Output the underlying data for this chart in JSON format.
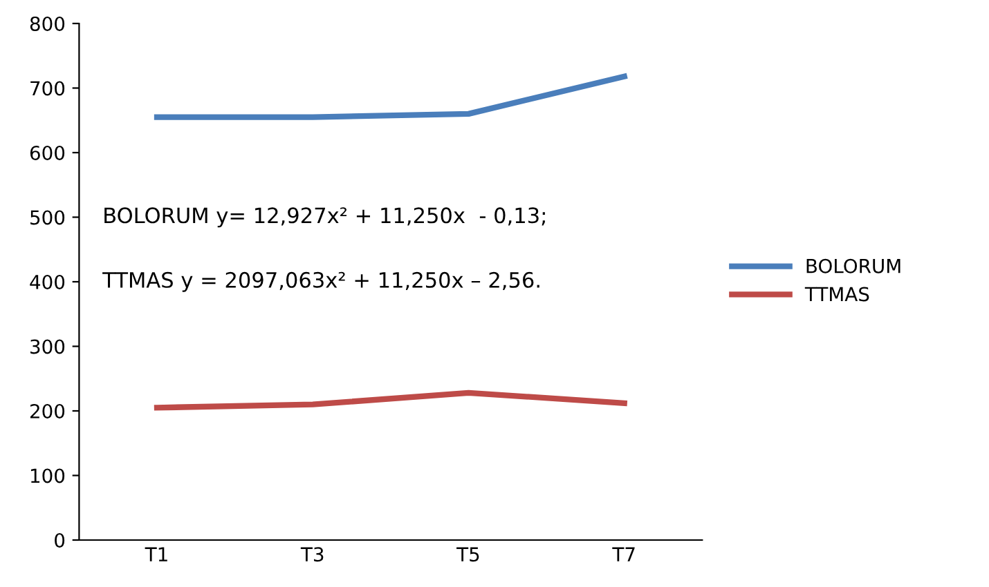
{
  "chart_data": {
    "type": "line",
    "categories": [
      "T1",
      "T3",
      "T5",
      "T7"
    ],
    "series": [
      {
        "name": "BOLORUM",
        "color": "#4a7ebb",
        "values": [
          655,
          655,
          660,
          718
        ]
      },
      {
        "name": "TTMAS",
        "color": "#be4b48",
        "values": [
          205,
          210,
          228,
          212
        ]
      }
    ],
    "ylim": [
      0,
      800
    ],
    "yticks": [
      0,
      100,
      200,
      300,
      400,
      500,
      600,
      700,
      800
    ],
    "grid": false,
    "legend": "right",
    "marker": "none",
    "line_style": "solid",
    "annotations": [
      "BOLORUM y= 12,927x² + 11,250x  - 0,13;",
      "TTMAS y = 2097,063x² + 11,250x – 2,56."
    ]
  }
}
